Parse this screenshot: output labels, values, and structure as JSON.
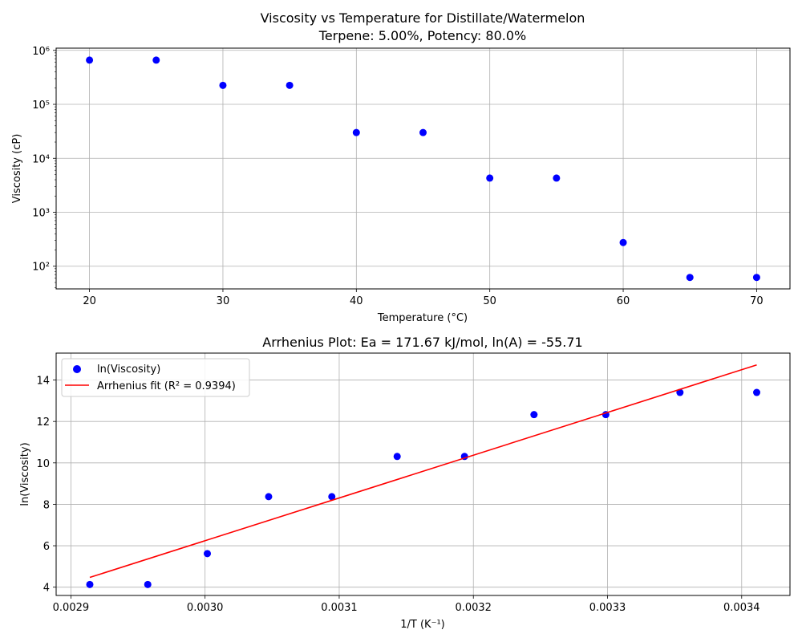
{
  "chart_data": [
    {
      "type": "scatter",
      "title": "Viscosity vs Temperature for Distillate/Watermelon",
      "subtitle": "Terpene: 5.00%, Potency: 80.0%",
      "xlabel": "Temperature (°C)",
      "ylabel": "Viscosity (cP)",
      "xlim": [
        17.5,
        72.5
      ],
      "ylim": [
        38,
        1100000
      ],
      "yscale": "log",
      "xticks": [
        20,
        30,
        40,
        50,
        60,
        70
      ],
      "yticks": [
        100,
        1000,
        10000,
        100000,
        1000000
      ],
      "ytick_labels": [
        "10²",
        "10³",
        "10⁴",
        "10⁵",
        "10⁶"
      ],
      "grid": true,
      "series": [
        {
          "color": "#0000ff",
          "x": [
            20,
            25,
            30,
            35,
            40,
            45,
            50,
            55,
            60,
            65,
            70
          ],
          "y": [
            660000,
            660000,
            225000,
            225000,
            30000,
            30000,
            4300,
            4300,
            275,
            62,
            62
          ]
        }
      ]
    },
    {
      "type": "scatter",
      "title": "Arrhenius Plot: Ea = 171.67 kJ/mol, ln(A) = -55.71",
      "xlabel": "1/T (K⁻¹)",
      "ylabel": "ln(Viscosity)",
      "xlim": [
        0.002889,
        0.003436
      ],
      "ylim": [
        3.6,
        15.3
      ],
      "xticks": [
        0.0029,
        0.003,
        0.0031,
        0.0032,
        0.0033,
        0.0034
      ],
      "xtick_labels": [
        "0.0029",
        "0.0030",
        "0.0031",
        "0.0032",
        "0.0033",
        "0.0034"
      ],
      "yticks": [
        4,
        6,
        8,
        10,
        12,
        14
      ],
      "grid": true,
      "legend_position": "top-left",
      "series": [
        {
          "name": "ln(Viscosity)",
          "kind": "points",
          "color": "#0000ff",
          "x": [
            0.0029141,
            0.0029573,
            0.0030017,
            0.0030474,
            0.0030945,
            0.0031432,
            0.0031934,
            0.0032452,
            0.0032987,
            0.003354,
            0.0034112
          ],
          "y": [
            4.13,
            4.13,
            5.62,
            8.37,
            8.37,
            10.31,
            10.31,
            12.33,
            12.33,
            13.4,
            13.4
          ]
        },
        {
          "name": "Arrhenius fit (R² = 0.9394)",
          "kind": "line",
          "color": "#ff0000",
          "x": [
            0.0029141,
            0.0034112
          ],
          "y": [
            4.47,
            14.73
          ]
        }
      ]
    }
  ]
}
